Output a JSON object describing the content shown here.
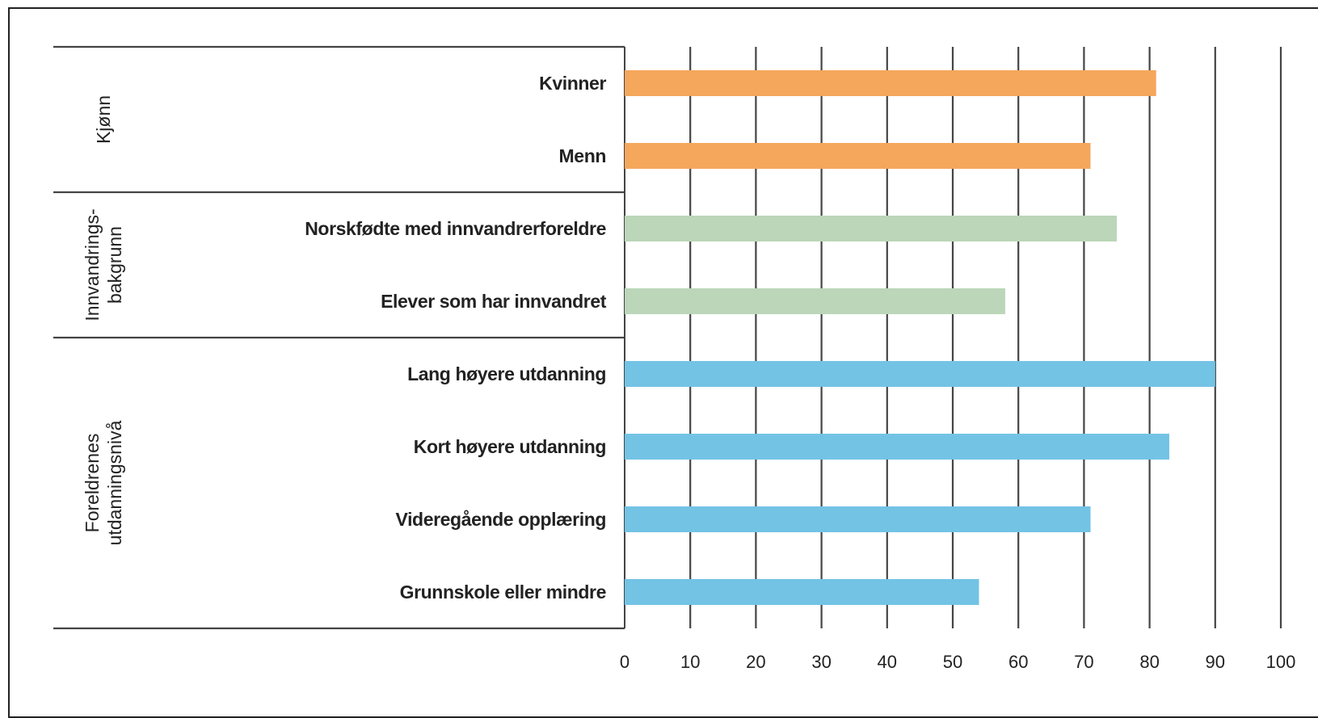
{
  "chart_data": {
    "type": "bar",
    "orientation": "horizontal",
    "title": "",
    "xlabel": "",
    "ylabel": "",
    "xlim": [
      0,
      100
    ],
    "ticks": [
      "0",
      "10",
      "20",
      "30",
      "40",
      "50",
      "60",
      "70",
      "80",
      "90",
      "100"
    ],
    "grid": "vertical",
    "groups": [
      {
        "label": [
          "Kjønn"
        ],
        "color": "#F5A75C",
        "categories": [
          "Kvinner",
          "Menn"
        ],
        "values": [
          81,
          71
        ]
      },
      {
        "label": [
          "Innvandrings-",
          "bakgrunn"
        ],
        "color": "#BBD6B9",
        "categories": [
          "Norskfødte med innvandrerforeldre",
          "Elever som har innvandret"
        ],
        "values": [
          75,
          58
        ]
      },
      {
        "label": [
          "Foreldrenes",
          "utdanningsnivå"
        ],
        "color": "#73C3E5",
        "categories": [
          "Lang høyere utdanning",
          "Kort høyere utdanning",
          "Videregående opplæring",
          "Grunnskole eller mindre"
        ],
        "values": [
          90,
          83,
          71,
          54
        ]
      }
    ]
  }
}
